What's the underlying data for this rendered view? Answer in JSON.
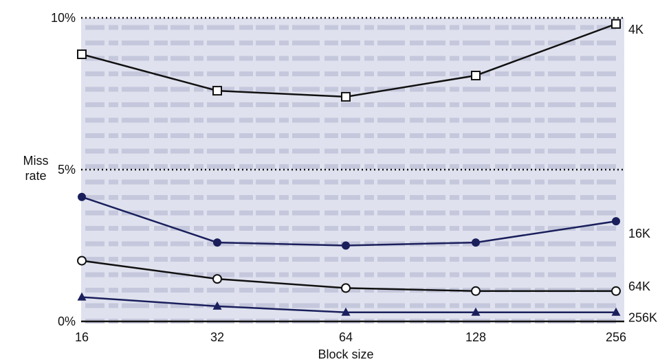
{
  "chart_data": {
    "type": "line",
    "x": [
      "16",
      "32",
      "64",
      "128",
      "256"
    ],
    "xlabel": "Block size",
    "ylabel": "Miss rate",
    "ylim": [
      0,
      10
    ],
    "yticks": [
      "0%",
      "5%",
      "10%"
    ],
    "grid": "dotted lines at 5% and 10%",
    "series": [
      {
        "name": "4K",
        "values": [
          8.8,
          7.6,
          7.4,
          8.1,
          9.8
        ],
        "marker": "square",
        "color": "#111111"
      },
      {
        "name": "16K",
        "values": [
          4.1,
          2.6,
          2.5,
          2.6,
          3.3
        ],
        "marker": "circle-filled",
        "color": "#1a1f5c"
      },
      {
        "name": "64K",
        "values": [
          2.0,
          1.4,
          1.1,
          1.0,
          1.0
        ],
        "marker": "circle-open",
        "color": "#111111"
      },
      {
        "name": "256K",
        "values": [
          0.8,
          0.5,
          0.3,
          0.3,
          0.3
        ],
        "marker": "triangle",
        "color": "#1a1f5c"
      }
    ]
  },
  "colors": {
    "plot_background": "#dfe1ee",
    "text_lines": "#c5c8dc",
    "axis": "#111111"
  }
}
